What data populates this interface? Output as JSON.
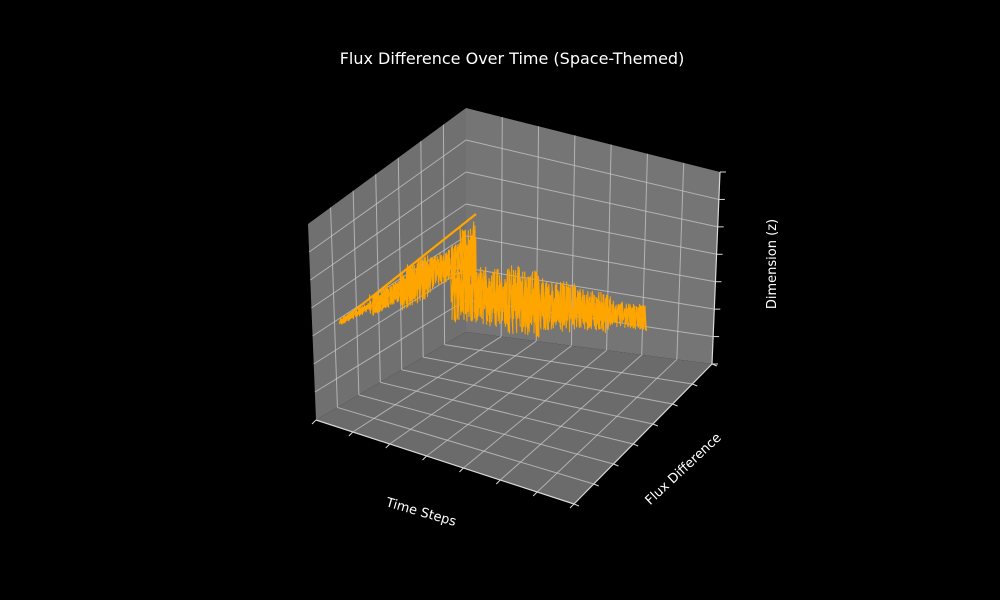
{
  "chart_data": {
    "type": "line3d",
    "title": "Flux Difference Over Time (Space-Themed)",
    "xlabel": "Time Steps",
    "ylabel": "Flux Difference",
    "zlabel": "Dimension (z)",
    "background": "#000000",
    "pane_color": "#767676",
    "grid": true,
    "series": [
      {
        "color": "#FFA500",
        "segments": [
          {
            "t0": 0.0,
            "t1": 0.1,
            "amp": 0.1
          },
          {
            "t0": 0.1,
            "t1": 0.2,
            "amp": 0.3
          },
          {
            "t0": 0.2,
            "t1": 0.3,
            "amp": 0.6
          },
          {
            "t0": 0.3,
            "t1": 0.4,
            "amp": 0.45
          },
          {
            "t0": 0.4,
            "t1": 0.5,
            "amp": 0.85
          },
          {
            "t0": 0.5,
            "t1": 0.6,
            "amp": 0.8
          },
          {
            "t0": 0.6,
            "t1": 0.7,
            "amp": 0.95
          },
          {
            "t0": 0.7,
            "t1": 0.8,
            "amp": 0.7
          },
          {
            "t0": 0.8,
            "t1": 0.9,
            "amp": 0.55
          },
          {
            "t0": 0.9,
            "t1": 1.0,
            "amp": 0.35
          }
        ]
      }
    ]
  }
}
